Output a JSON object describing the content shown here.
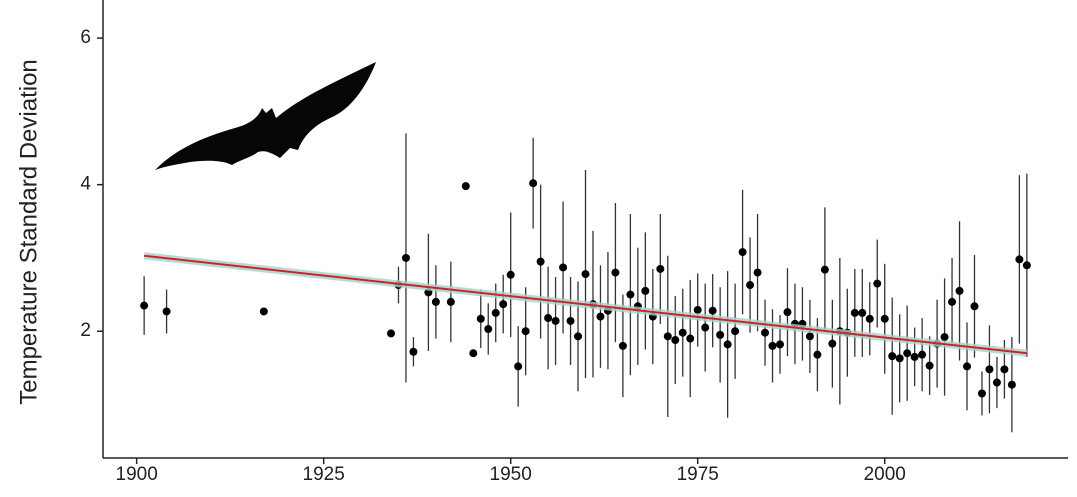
{
  "chart_data": {
    "type": "scatter",
    "y_label": "Temperature Standard Deviation",
    "xlim": [
      1895.5,
      2024.5
    ],
    "xticks": [
      1900,
      1925,
      1950,
      1975,
      2000
    ],
    "ylim": [
      0.27,
      6.52
    ],
    "yticks": [
      2,
      4,
      6
    ],
    "series": [
      {
        "kind": "points",
        "color": "#000000",
        "x": [
          1901,
          1904,
          1917,
          1934,
          1935,
          1936,
          1937,
          1939,
          1940,
          1942,
          1944,
          1945,
          1946,
          1947,
          1948,
          1949,
          1950,
          1951,
          1952,
          1953,
          1954,
          1955,
          1956,
          1957,
          1958,
          1959,
          1960,
          1961,
          1962,
          1963,
          1964,
          1965,
          1966,
          1967,
          1968,
          1969,
          1970,
          1971,
          1972,
          1973,
          1974,
          1975,
          1976,
          1977,
          1978,
          1979,
          1980,
          1981,
          1982,
          1983,
          1984,
          1985,
          1986,
          1987,
          1988,
          1989,
          1990,
          1991,
          1992,
          1993,
          1994,
          1995,
          1996,
          1997,
          1998,
          1999,
          2000,
          2001,
          2002,
          2003,
          2004,
          2005,
          2006,
          2007,
          2008,
          2009,
          2010,
          2011,
          2012,
          2013,
          2014,
          2015,
          2016,
          2017,
          2018,
          2019
        ],
        "values": [
          2.35,
          2.27,
          2.27,
          1.97,
          2.63,
          3.0,
          1.72,
          2.53,
          2.4,
          2.4,
          3.98,
          1.7,
          2.17,
          2.03,
          2.25,
          2.37,
          2.77,
          1.52,
          2.0,
          4.02,
          2.95,
          2.18,
          2.14,
          2.87,
          2.14,
          1.93,
          2.78,
          2.37,
          2.2,
          2.28,
          2.8,
          1.8,
          2.5,
          2.34,
          2.55,
          2.2,
          2.85,
          1.93,
          1.88,
          1.98,
          1.9,
          2.29,
          2.05,
          2.28,
          1.95,
          1.82,
          2.0,
          3.08,
          2.63,
          2.8,
          1.98,
          1.8,
          1.82,
          2.26,
          2.1,
          2.1,
          1.93,
          1.68,
          2.84,
          1.83,
          2.0,
          1.98,
          2.25,
          2.25,
          2.17,
          2.65,
          2.17,
          1.66,
          1.63,
          1.7,
          1.65,
          1.68,
          1.53,
          1.83,
          1.92,
          2.4,
          2.55,
          1.52,
          2.34,
          1.15,
          1.48,
          1.3,
          1.48,
          1.27,
          2.98,
          2.9
        ],
        "errors": [
          0.4,
          0.3,
          null,
          null,
          0.25,
          1.7,
          0.2,
          0.8,
          0.5,
          0.55,
          null,
          null,
          0.4,
          0.35,
          0.4,
          0.4,
          0.85,
          0.55,
          0.6,
          0.62,
          1.05,
          0.7,
          0.6,
          0.9,
          0.6,
          0.75,
          1.42,
          1.0,
          0.7,
          0.8,
          0.95,
          0.7,
          1.1,
          0.8,
          0.8,
          0.65,
          0.75,
          1.1,
          0.6,
          0.6,
          0.8,
          0.5,
          0.6,
          0.5,
          0.65,
          1.0,
          0.65,
          0.85,
          0.65,
          0.8,
          0.45,
          0.5,
          0.4,
          0.6,
          0.55,
          0.5,
          0.5,
          0.5,
          0.85,
          0.6,
          1.0,
          0.6,
          0.6,
          0.6,
          0.5,
          0.6,
          0.75,
          0.8,
          0.6,
          0.65,
          0.4,
          0.5,
          0.4,
          0.6,
          0.8,
          0.6,
          0.95,
          0.6,
          0.7,
          0.3,
          0.6,
          0.35,
          0.4,
          0.65,
          1.15,
          1.25
        ]
      },
      {
        "kind": "trend",
        "color": "#d62020",
        "x": [
          1901,
          2019
        ],
        "values": [
          3.03,
          1.7
        ]
      }
    ]
  }
}
